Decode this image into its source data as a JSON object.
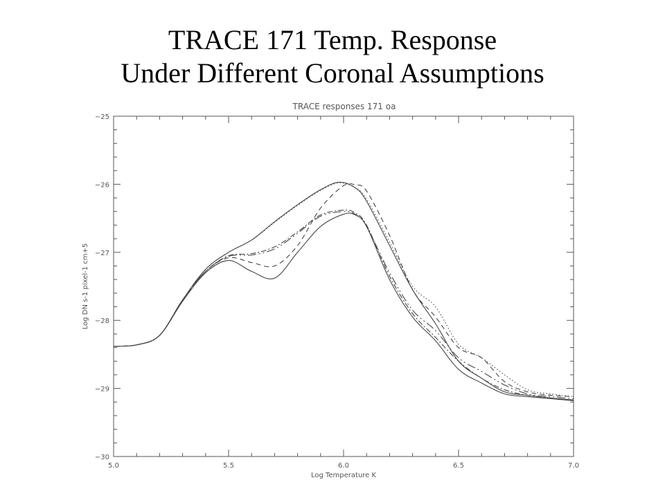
{
  "slide": {
    "title_line1": "TRACE 171 Temp. Response",
    "title_line2": "Under Different Coronal Assumptions"
  },
  "chart_data": {
    "type": "line",
    "title": "TRACE responses 171 oa",
    "xlabel": "Log Temperature K",
    "ylabel": "Log DN s-1 pixel-1 cm+5",
    "xlim": [
      5.0,
      7.0
    ],
    "ylim": [
      -30,
      -25
    ],
    "xticks": [
      5.0,
      5.5,
      6.0,
      6.5,
      7.0
    ],
    "xtick_labels": [
      "5.0",
      "5.5",
      "6.0",
      "6.5",
      "7.0"
    ],
    "yticks": [
      -30,
      -29,
      -28,
      -27,
      -26,
      -25
    ],
    "ytick_labels": [
      "−30",
      "−29",
      "−28",
      "−27",
      "−26",
      "−25"
    ],
    "grid": false,
    "line_color": "#444444",
    "series": [
      {
        "style": "solid",
        "x": [
          5.0,
          5.1,
          5.2,
          5.3,
          5.4,
          5.5,
          5.6,
          5.7,
          5.8,
          5.9,
          5.98,
          6.05,
          6.1,
          6.2,
          6.3,
          6.4,
          6.5,
          6.6,
          6.7,
          6.8,
          6.9,
          7.0
        ],
        "y": [
          -28.38,
          -28.36,
          -28.22,
          -27.7,
          -27.25,
          -27.0,
          -26.82,
          -26.55,
          -26.3,
          -26.08,
          -25.97,
          -26.05,
          -26.25,
          -26.9,
          -27.55,
          -28.05,
          -28.6,
          -28.85,
          -29.05,
          -29.1,
          -29.14,
          -29.17
        ]
      },
      {
        "style": "dotted",
        "x": [
          5.0,
          5.1,
          5.2,
          5.3,
          5.4,
          5.5,
          5.6,
          5.7,
          5.8,
          5.9,
          5.98,
          6.05,
          6.1,
          6.2,
          6.3,
          6.4,
          6.5,
          6.6,
          6.7,
          6.8,
          6.9,
          7.0
        ],
        "y": [
          -28.38,
          -28.36,
          -28.22,
          -27.7,
          -27.25,
          -27.0,
          -26.82,
          -26.56,
          -26.31,
          -26.09,
          -25.98,
          -26.05,
          -26.22,
          -26.85,
          -27.5,
          -27.8,
          -28.35,
          -28.55,
          -28.8,
          -29.02,
          -29.08,
          -29.12
        ]
      },
      {
        "style": "dashed",
        "x": [
          5.0,
          5.1,
          5.2,
          5.3,
          5.4,
          5.5,
          5.6,
          5.7,
          5.8,
          5.9,
          6.0,
          6.05,
          6.1,
          6.2,
          6.3,
          6.4,
          6.5,
          6.6,
          6.7,
          6.8,
          6.9,
          7.0
        ],
        "y": [
          -28.38,
          -28.36,
          -28.22,
          -27.7,
          -27.28,
          -27.08,
          -27.15,
          -27.2,
          -26.9,
          -26.35,
          -26.02,
          -26.01,
          -26.1,
          -26.75,
          -27.55,
          -27.95,
          -28.4,
          -28.55,
          -28.9,
          -29.05,
          -29.1,
          -29.12
        ]
      },
      {
        "style": "dashdot",
        "x": [
          5.0,
          5.1,
          5.2,
          5.3,
          5.4,
          5.5,
          5.6,
          5.7,
          5.8,
          5.9,
          6.0,
          6.05,
          6.1,
          6.2,
          6.3,
          6.4,
          6.5,
          6.6,
          6.7,
          6.8,
          6.9,
          7.0
        ],
        "y": [
          -28.38,
          -28.36,
          -28.22,
          -27.7,
          -27.28,
          -27.05,
          -27.02,
          -26.92,
          -26.7,
          -26.45,
          -26.38,
          -26.42,
          -26.6,
          -27.35,
          -27.9,
          -28.25,
          -28.6,
          -28.85,
          -29.02,
          -29.1,
          -29.14,
          -29.17
        ]
      },
      {
        "style": "longdash",
        "x": [
          5.0,
          5.1,
          5.2,
          5.3,
          5.4,
          5.5,
          5.6,
          5.7,
          5.8,
          5.9,
          6.0,
          6.05,
          6.1,
          6.2,
          6.3,
          6.4,
          6.5,
          6.6,
          6.7,
          6.8,
          6.9,
          7.0
        ],
        "y": [
          -28.38,
          -28.36,
          -28.22,
          -27.7,
          -27.28,
          -27.06,
          -27.04,
          -26.95,
          -26.72,
          -26.47,
          -26.4,
          -26.44,
          -26.62,
          -27.3,
          -27.85,
          -28.15,
          -28.55,
          -28.75,
          -28.95,
          -29.08,
          -29.12,
          -29.15
        ]
      },
      {
        "style": "solid",
        "x": [
          5.0,
          5.1,
          5.2,
          5.3,
          5.4,
          5.5,
          5.6,
          5.7,
          5.8,
          5.9,
          6.0,
          6.05,
          6.1,
          6.2,
          6.3,
          6.4,
          6.5,
          6.6,
          6.7,
          6.8,
          6.9,
          7.0
        ],
        "y": [
          -28.38,
          -28.36,
          -28.22,
          -27.72,
          -27.3,
          -27.12,
          -27.28,
          -27.38,
          -27.0,
          -26.62,
          -26.44,
          -26.45,
          -26.62,
          -27.4,
          -27.95,
          -28.3,
          -28.72,
          -28.92,
          -29.08,
          -29.12,
          -29.15,
          -29.18
        ]
      }
    ]
  }
}
